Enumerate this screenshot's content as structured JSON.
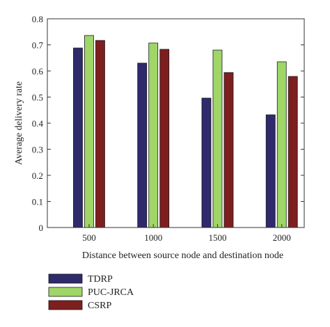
{
  "chart_data": {
    "type": "bar",
    "xlabel": "Distance between source node and destination node",
    "ylabel": "Average delivery rate",
    "categories": [
      "500",
      "1000",
      "1500",
      "2000"
    ],
    "ylim": [
      0,
      0.8
    ],
    "yticks": [
      "0",
      "0.1",
      "0.2",
      "0.3",
      "0.4",
      "0.5",
      "0.6",
      "0.7",
      "0.8"
    ],
    "grid": false,
    "legend_position": "bottom-left",
    "series": [
      {
        "name": "TDRP",
        "color": "#2e2a6b",
        "values": [
          0.688,
          0.63,
          0.496,
          0.432
        ]
      },
      {
        "name": "PUC-JRCA",
        "color": "#9fd667",
        "values": [
          0.736,
          0.707,
          0.68,
          0.635
        ]
      },
      {
        "name": "CSRP",
        "color": "#7e1f1f",
        "values": [
          0.717,
          0.683,
          0.594,
          0.579
        ]
      }
    ]
  }
}
